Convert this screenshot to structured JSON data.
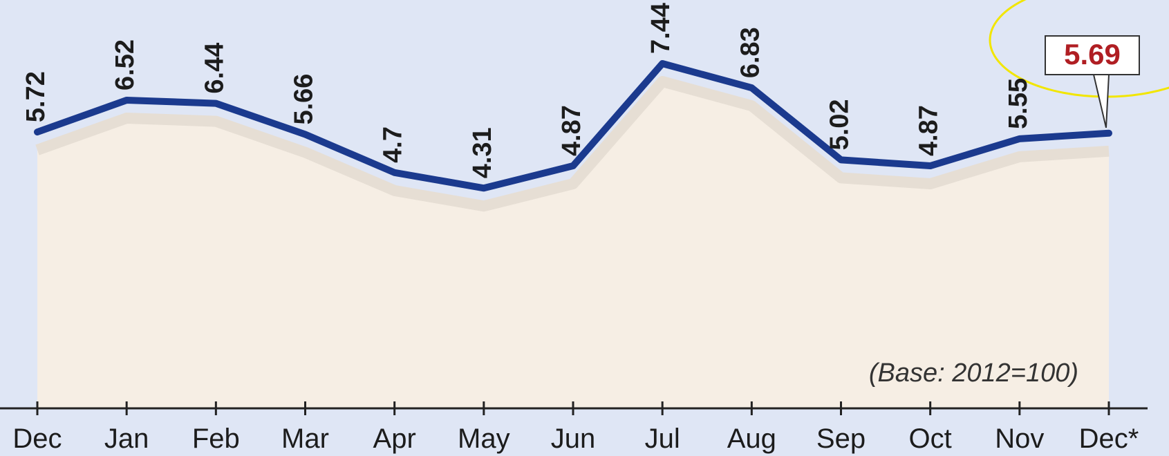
{
  "chart_data": {
    "type": "line",
    "categories": [
      "Dec",
      "Jan",
      "Feb",
      "Mar",
      "Apr",
      "May",
      "Jun",
      "Jul",
      "Aug",
      "Sep",
      "Oct",
      "Nov",
      "Dec*"
    ],
    "values": [
      5.72,
      6.52,
      6.44,
      5.66,
      4.7,
      4.31,
      4.87,
      7.44,
      6.83,
      5.02,
      4.87,
      5.55,
      5.69
    ],
    "color": "#1b3a8e",
    "annotation": "(Base: 2012=100)"
  }
}
